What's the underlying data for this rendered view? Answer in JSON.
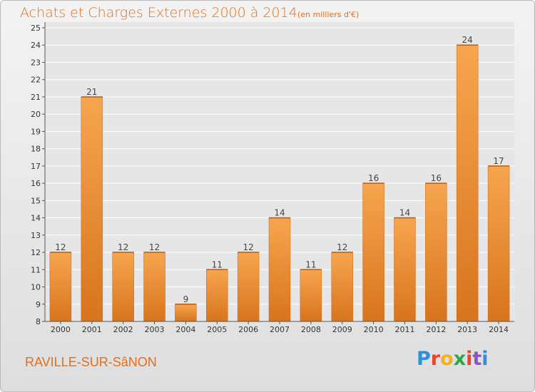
{
  "header": {
    "title": "Achats et Charges Externes 2000 à 2014",
    "unit": "(en milliers d'€)"
  },
  "footer": {
    "commune": "RAVILLE-SUR-SâNON",
    "logo": "Proxiti"
  },
  "colors": {
    "bar_top": "#f7a54f",
    "bar_bottom": "#d8741e",
    "text_accent": "#e36f19",
    "grid": "#ffffff"
  },
  "chart_data": {
    "type": "bar",
    "title": "Achats et Charges Externes 2000 à 2014",
    "subtitle": "(en milliers d'€)",
    "xlabel": "",
    "ylabel": "",
    "categories": [
      "2000",
      "2001",
      "2002",
      "2003",
      "2004",
      "2005",
      "2006",
      "2007",
      "2008",
      "2009",
      "2010",
      "2011",
      "2012",
      "2013",
      "2014"
    ],
    "values": [
      12,
      21,
      12,
      12,
      9,
      11,
      12,
      14,
      11,
      12,
      16,
      14,
      16,
      24,
      17
    ],
    "ylim": [
      8,
      25
    ],
    "yticks": [
      8,
      9,
      10,
      11,
      12,
      13,
      14,
      15,
      16,
      17,
      18,
      19,
      20,
      21,
      22,
      23,
      24,
      25
    ],
    "grid": true,
    "legend": "none"
  }
}
